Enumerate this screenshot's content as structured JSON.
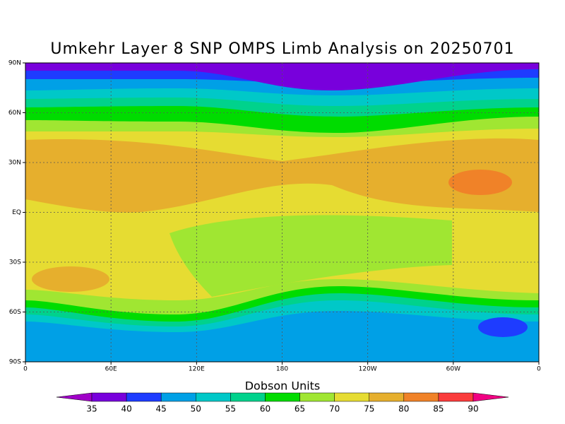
{
  "title": "Umkehr Layer 8 SNP OMPS Limb Analysis on 20250701",
  "map": {
    "x_tick_labels": [
      "0",
      "60E",
      "120E",
      "180",
      "120W",
      "60W",
      "0"
    ],
    "y_tick_labels": [
      "90N",
      "60N",
      "30N",
      "EQ",
      "30S",
      "60S",
      "90S"
    ]
  },
  "colorbar": {
    "title": "Dobson Units",
    "levels": [
      35,
      40,
      45,
      50,
      55,
      60,
      65,
      70,
      75,
      80,
      85,
      90
    ],
    "colors": [
      "#a000c8",
      "#7800dc",
      "#1e3cff",
      "#00a0e6",
      "#00c8c8",
      "#00d28c",
      "#00dc00",
      "#a0e632",
      "#e6dc32",
      "#e6af2d",
      "#f08228",
      "#fa3c3c",
      "#f00082"
    ]
  }
}
